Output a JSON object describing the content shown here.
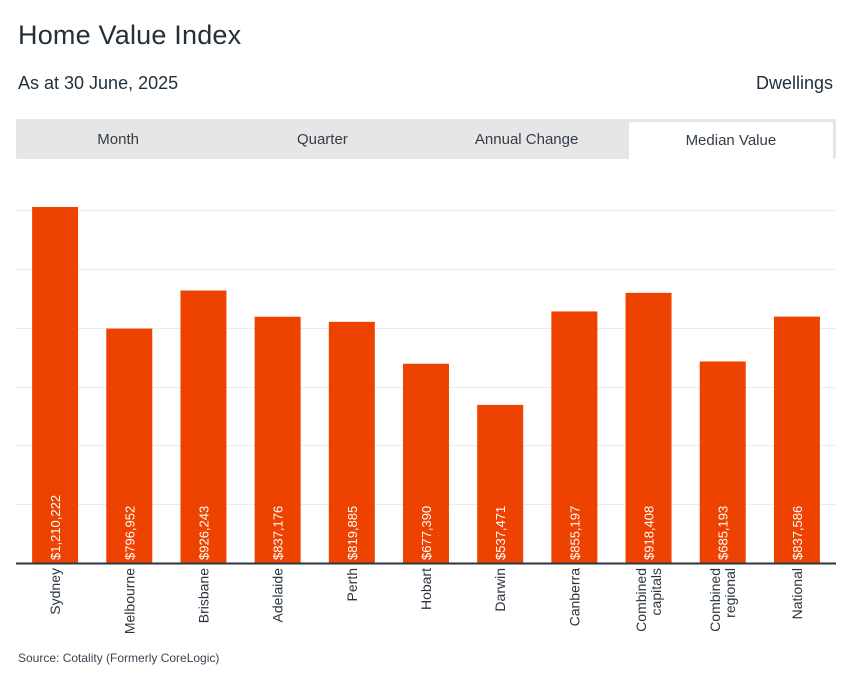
{
  "header": {
    "title": "Home Value Index",
    "subtitle": "As at 30 June, 2025",
    "dwellings": "Dwellings"
  },
  "tabs": [
    {
      "label": "Month",
      "active": false
    },
    {
      "label": "Quarter",
      "active": false
    },
    {
      "label": "Annual Change",
      "active": false
    },
    {
      "label": "Median Value",
      "active": true
    }
  ],
  "chart_data": {
    "type": "bar",
    "title": "Home Value Index",
    "categories": [
      [
        "Sydney"
      ],
      [
        "Melbourne"
      ],
      [
        "Brisbane"
      ],
      [
        "Adelaide"
      ],
      [
        "Perth"
      ],
      [
        "Hobart"
      ],
      [
        "Darwin"
      ],
      [
        "Canberra"
      ],
      [
        "Combined",
        "capitals"
      ],
      [
        "Combined",
        "regional"
      ],
      [
        "National"
      ]
    ],
    "values": [
      1210222,
      796952,
      926243,
      837176,
      819885,
      677390,
      537471,
      855197,
      918408,
      685193,
      837586
    ],
    "value_labels": [
      "$1,210,222",
      "$796,952",
      "$926,243",
      "$837,176",
      "$819,885",
      "$677,390",
      "$537,471",
      "$855,197",
      "$918,408",
      "$685,193",
      "$837,586"
    ],
    "ylim": [
      0,
      1200000
    ],
    "gridlines": [
      200000,
      400000,
      600000,
      800000,
      1000000,
      1200000
    ],
    "bar_color": "#ee4300",
    "grid": true
  },
  "footer": {
    "source": "Source: Cotality (Formerly CoreLogic)"
  }
}
